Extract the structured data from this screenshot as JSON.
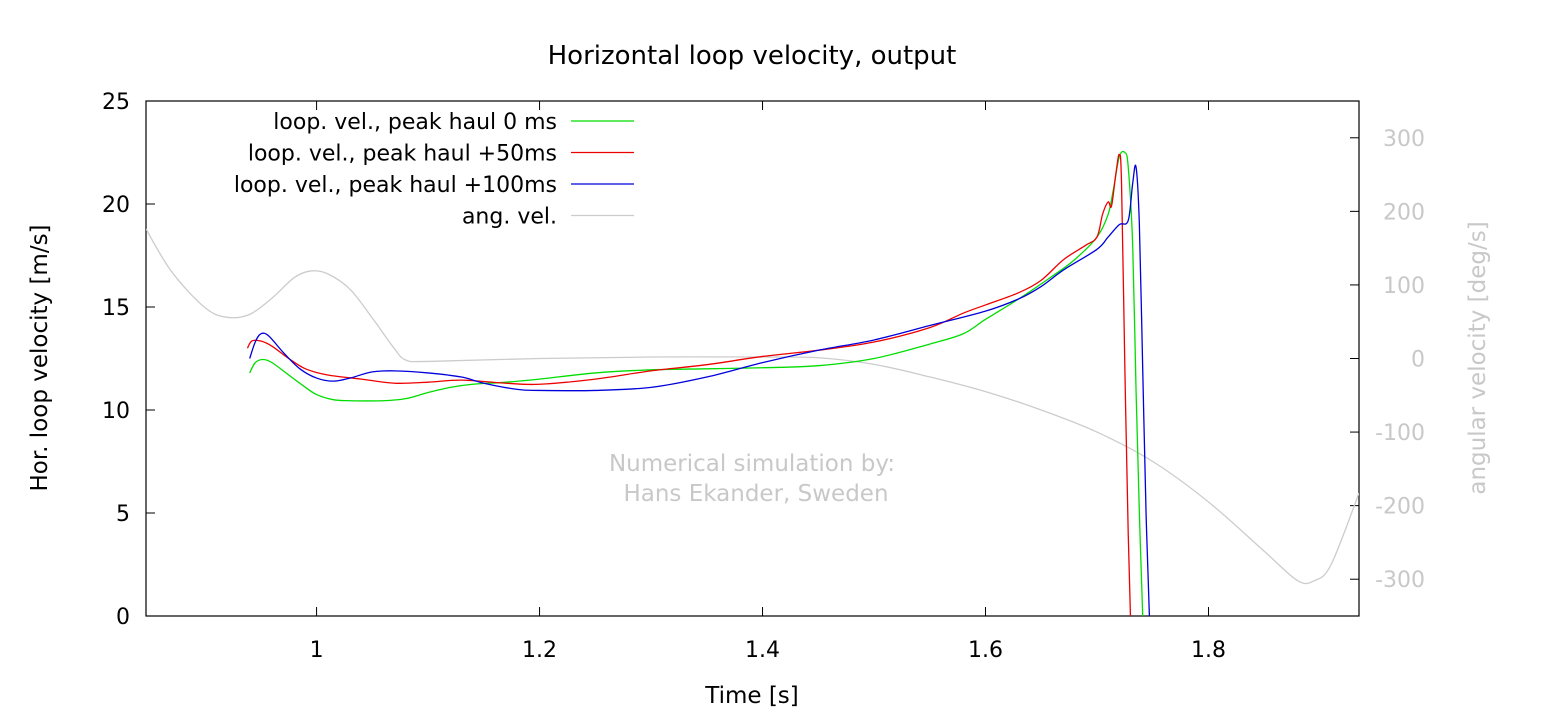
{
  "chart_data": {
    "type": "line",
    "title": "Horizontal loop velocity, output",
    "xlabel": "Time [s]",
    "ylabel": "Hor. loop velocity [m/s]",
    "y2label": "angular velocity [deg/s]",
    "xlim": [
      0.847,
      1.935
    ],
    "ylim": [
      0,
      25
    ],
    "y2lim": [
      -350,
      350
    ],
    "xticks": [
      "1",
      "1.2",
      "1.4",
      "1.6",
      "1.8"
    ],
    "xtick_values": [
      1.0,
      1.2,
      1.4,
      1.6,
      1.8
    ],
    "yticks": [
      "0",
      "5",
      "10",
      "15",
      "20",
      "25"
    ],
    "ytick_values": [
      0,
      5,
      10,
      15,
      20,
      25
    ],
    "y2ticks": [
      "-300",
      "-200",
      "-100",
      "0",
      "100",
      "200",
      "300"
    ],
    "y2tick_values": [
      -300,
      -200,
      -100,
      0,
      100,
      200,
      300
    ],
    "annotation": [
      "Numerical simulation by:",
      "Hans Ekander, Sweden"
    ],
    "legend_position": "top-left",
    "series": [
      {
        "name": "loop. vel., peak haul 0 ms",
        "color": "#00dd00",
        "axis": "y",
        "points": [
          [
            0.94,
            11.8
          ],
          [
            0.945,
            12.3
          ],
          [
            0.952,
            12.45
          ],
          [
            0.96,
            12.3
          ],
          [
            0.975,
            11.7
          ],
          [
            0.99,
            11.1
          ],
          [
            1.0,
            10.75
          ],
          [
            1.015,
            10.5
          ],
          [
            1.03,
            10.45
          ],
          [
            1.06,
            10.45
          ],
          [
            1.08,
            10.55
          ],
          [
            1.1,
            10.85
          ],
          [
            1.12,
            11.1
          ],
          [
            1.14,
            11.25
          ],
          [
            1.17,
            11.35
          ],
          [
            1.2,
            11.5
          ],
          [
            1.25,
            11.8
          ],
          [
            1.3,
            11.95
          ],
          [
            1.35,
            12.0
          ],
          [
            1.4,
            12.05
          ],
          [
            1.45,
            12.15
          ],
          [
            1.5,
            12.5
          ],
          [
            1.55,
            13.2
          ],
          [
            1.58,
            13.7
          ],
          [
            1.6,
            14.4
          ],
          [
            1.63,
            15.4
          ],
          [
            1.66,
            16.5
          ],
          [
            1.68,
            17.3
          ],
          [
            1.7,
            18.4
          ],
          [
            1.71,
            19.5
          ],
          [
            1.715,
            20.8
          ],
          [
            1.72,
            22.3
          ],
          [
            1.725,
            22.5
          ],
          [
            1.728,
            21.8
          ],
          [
            1.732,
            18.0
          ],
          [
            1.735,
            11.0
          ],
          [
            1.738,
            5.0
          ],
          [
            1.741,
            0.0
          ]
        ]
      },
      {
        "name": "loop. vel., peak haul +50ms",
        "color": "#ee0000",
        "axis": "y",
        "points": [
          [
            0.938,
            13.0
          ],
          [
            0.942,
            13.35
          ],
          [
            0.95,
            13.35
          ],
          [
            0.96,
            13.1
          ],
          [
            0.975,
            12.5
          ],
          [
            0.99,
            12.0
          ],
          [
            1.01,
            11.7
          ],
          [
            1.04,
            11.5
          ],
          [
            1.07,
            11.3
          ],
          [
            1.1,
            11.35
          ],
          [
            1.13,
            11.45
          ],
          [
            1.17,
            11.3
          ],
          [
            1.2,
            11.25
          ],
          [
            1.25,
            11.5
          ],
          [
            1.3,
            11.9
          ],
          [
            1.35,
            12.2
          ],
          [
            1.4,
            12.6
          ],
          [
            1.45,
            12.9
          ],
          [
            1.5,
            13.3
          ],
          [
            1.55,
            14.0
          ],
          [
            1.58,
            14.7
          ],
          [
            1.6,
            15.1
          ],
          [
            1.63,
            15.7
          ],
          [
            1.65,
            16.3
          ],
          [
            1.67,
            17.3
          ],
          [
            1.69,
            18.0
          ],
          [
            1.7,
            18.4
          ],
          [
            1.705,
            19.5
          ],
          [
            1.71,
            20.1
          ],
          [
            1.713,
            19.9
          ],
          [
            1.717,
            21.5
          ],
          [
            1.72,
            22.4
          ],
          [
            1.722,
            21.0
          ],
          [
            1.725,
            12.0
          ],
          [
            1.728,
            4.0
          ],
          [
            1.73,
            0.0
          ]
        ]
      },
      {
        "name": "loop. vel., peak haul +100ms",
        "color": "#0000dd",
        "axis": "y",
        "points": [
          [
            0.94,
            12.5
          ],
          [
            0.945,
            13.3
          ],
          [
            0.95,
            13.7
          ],
          [
            0.957,
            13.6
          ],
          [
            0.97,
            12.8
          ],
          [
            0.985,
            12.0
          ],
          [
            1.0,
            11.55
          ],
          [
            1.015,
            11.4
          ],
          [
            1.03,
            11.55
          ],
          [
            1.05,
            11.85
          ],
          [
            1.07,
            11.9
          ],
          [
            1.1,
            11.8
          ],
          [
            1.13,
            11.6
          ],
          [
            1.15,
            11.3
          ],
          [
            1.18,
            11.0
          ],
          [
            1.2,
            10.95
          ],
          [
            1.25,
            10.95
          ],
          [
            1.3,
            11.1
          ],
          [
            1.35,
            11.6
          ],
          [
            1.4,
            12.3
          ],
          [
            1.45,
            12.9
          ],
          [
            1.5,
            13.4
          ],
          [
            1.55,
            14.1
          ],
          [
            1.6,
            14.8
          ],
          [
            1.63,
            15.4
          ],
          [
            1.65,
            16.0
          ],
          [
            1.67,
            16.8
          ],
          [
            1.7,
            17.8
          ],
          [
            1.71,
            18.4
          ],
          [
            1.72,
            19.0
          ],
          [
            1.728,
            19.2
          ],
          [
            1.732,
            21.0
          ],
          [
            1.735,
            21.8
          ],
          [
            1.738,
            19.0
          ],
          [
            1.741,
            12.0
          ],
          [
            1.744,
            5.0
          ],
          [
            1.747,
            0.0
          ]
        ]
      },
      {
        "name": "ang. vel.",
        "color": "#cccccc",
        "axis": "y2",
        "points": [
          [
            0.847,
            176
          ],
          [
            0.87,
            118
          ],
          [
            0.9,
            69
          ],
          [
            0.92,
            56
          ],
          [
            0.94,
            60
          ],
          [
            0.96,
            82
          ],
          [
            0.98,
            110
          ],
          [
            0.995,
            119
          ],
          [
            1.01,
            115
          ],
          [
            1.03,
            94
          ],
          [
            1.05,
            55
          ],
          [
            1.07,
            13
          ],
          [
            1.08,
            -2
          ],
          [
            1.1,
            -4
          ],
          [
            1.2,
            0
          ],
          [
            1.3,
            2
          ],
          [
            1.4,
            2
          ],
          [
            1.45,
            1
          ],
          [
            1.5,
            -8
          ],
          [
            1.55,
            -25
          ],
          [
            1.6,
            -45
          ],
          [
            1.65,
            -70
          ],
          [
            1.7,
            -100
          ],
          [
            1.75,
            -140
          ],
          [
            1.8,
            -195
          ],
          [
            1.85,
            -262
          ],
          [
            1.88,
            -302
          ],
          [
            1.895,
            -302
          ],
          [
            1.91,
            -280
          ],
          [
            1.935,
            -183
          ]
        ]
      }
    ]
  }
}
